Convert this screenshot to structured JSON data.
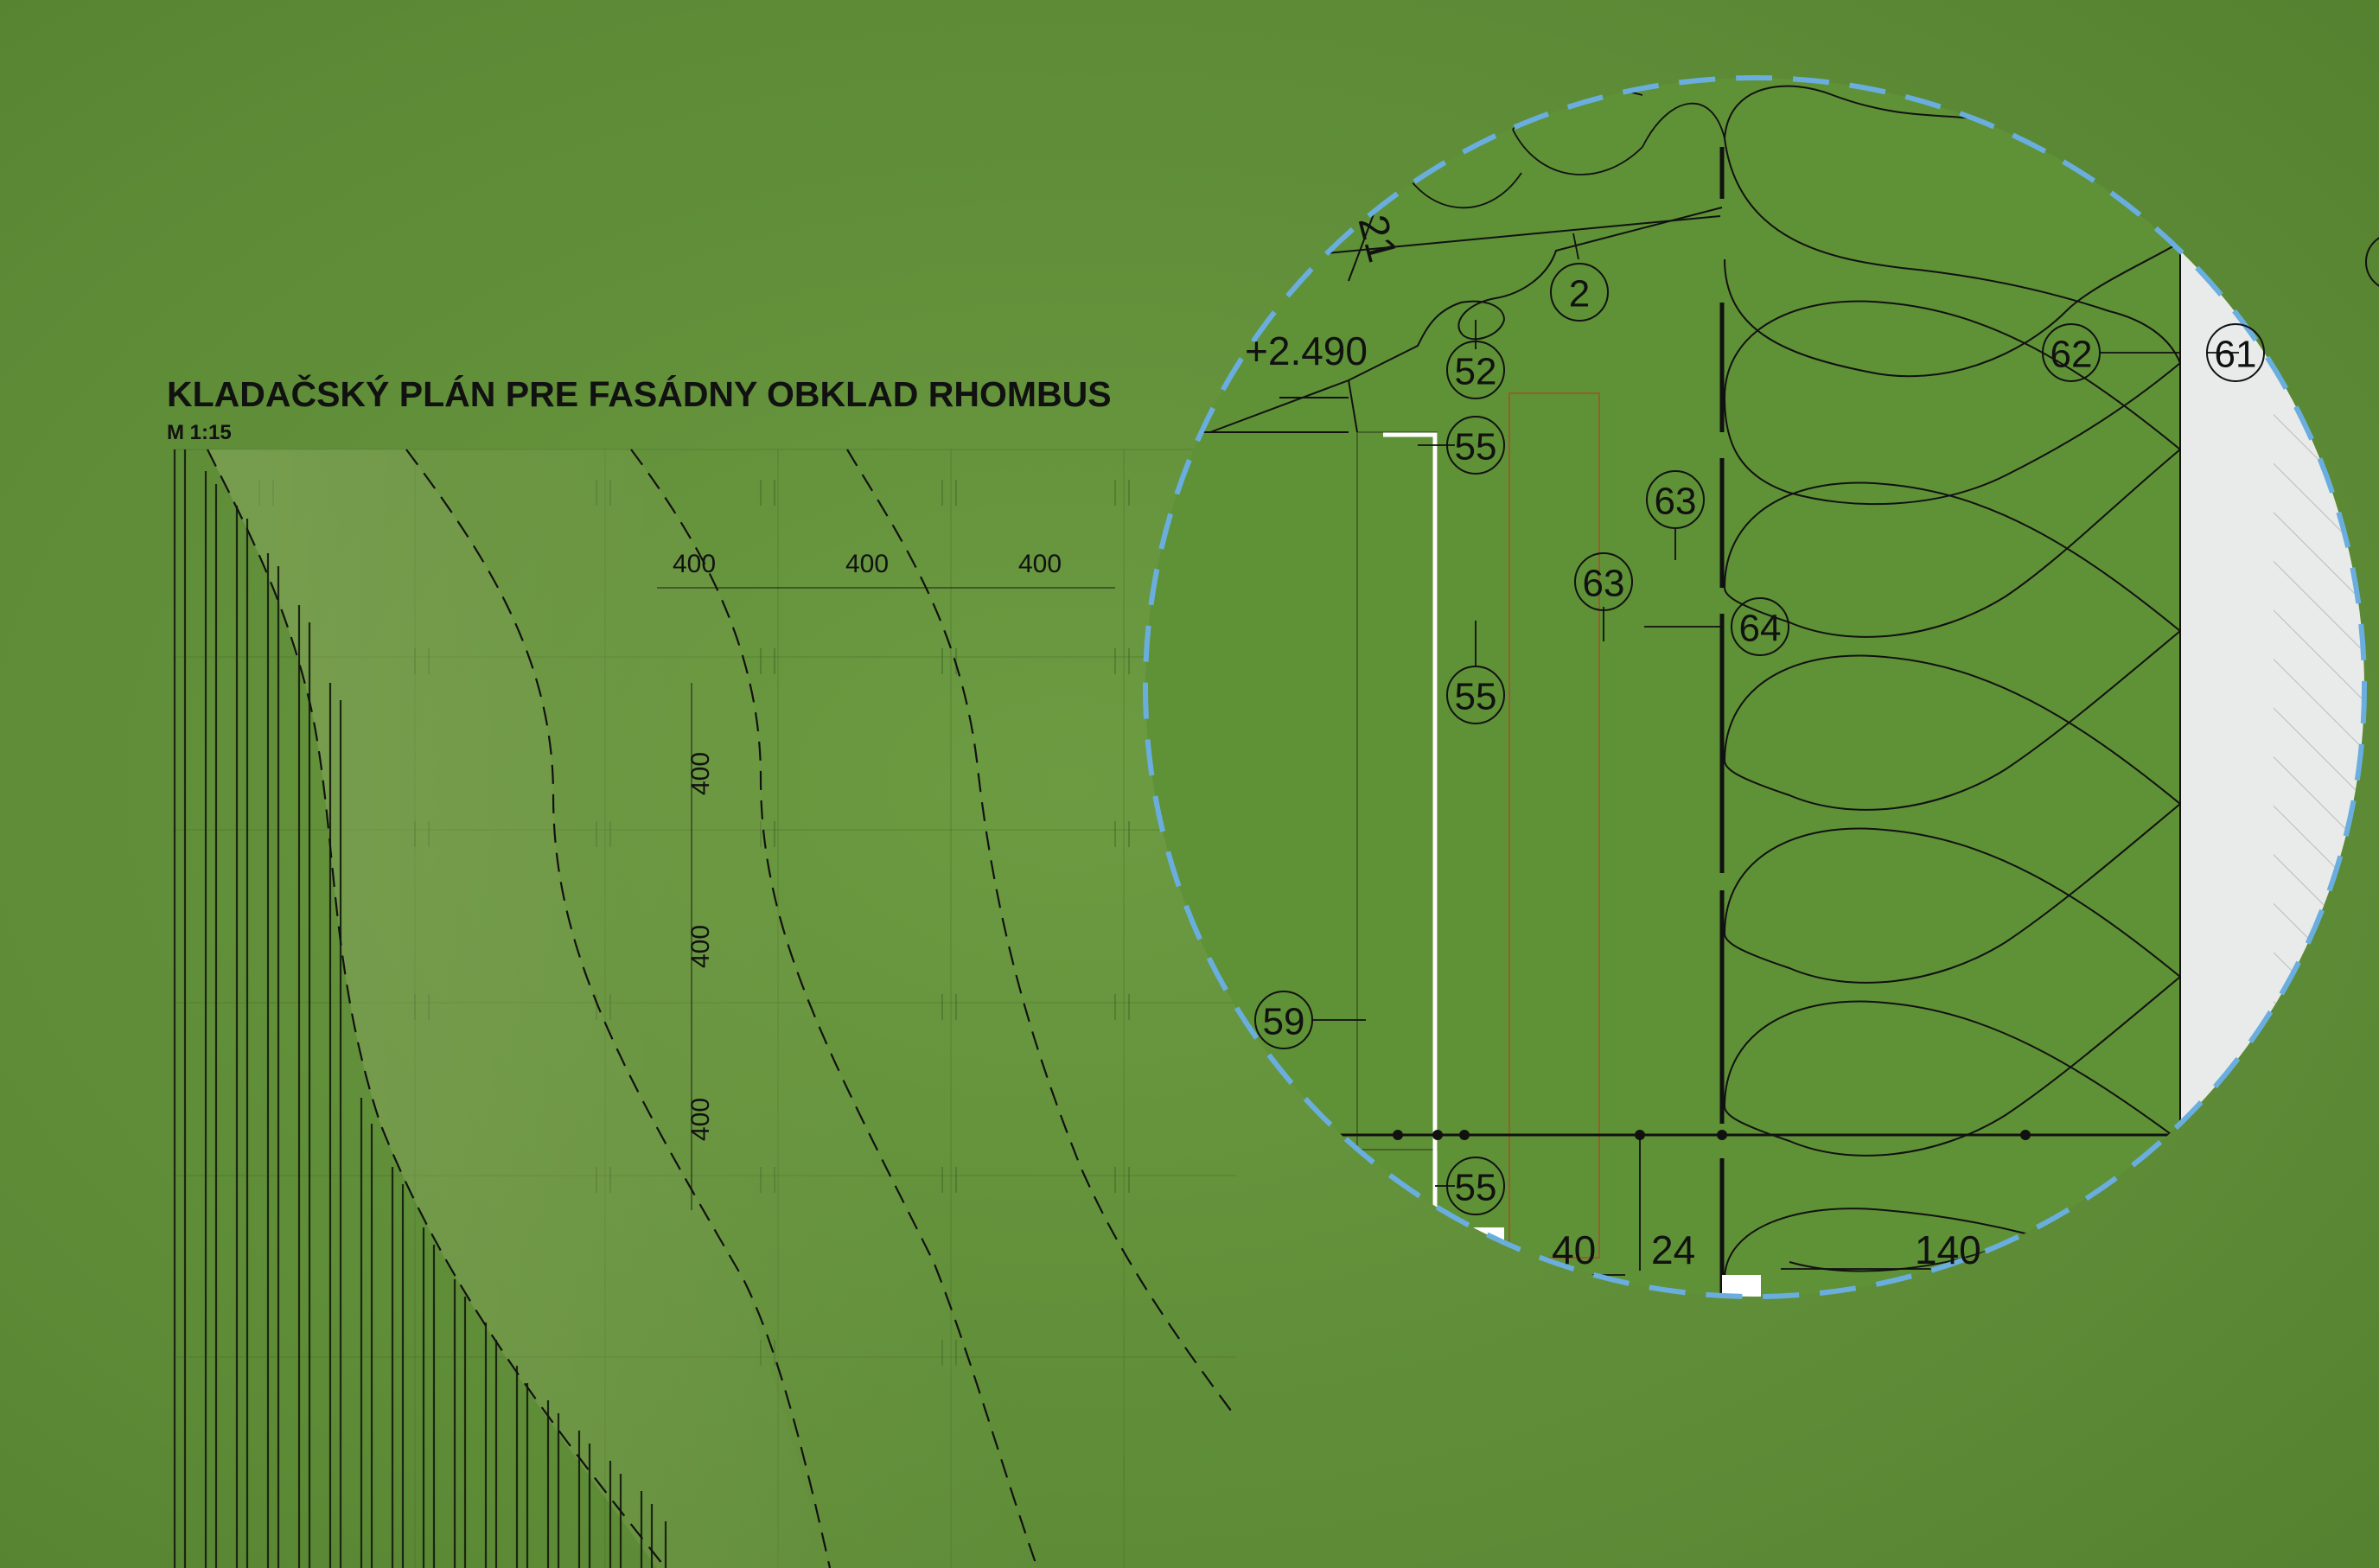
{
  "plan": {
    "title": "KLADAČSKÝ PLÁN PRE FASÁDNY OBKLAD RHOMBUS",
    "scale": "M 1:15",
    "dims_horizontal": [
      "400",
      "400",
      "400"
    ],
    "dims_vertical": [
      "400",
      "400",
      "400"
    ]
  },
  "detail": {
    "elevation": "+2.490",
    "dim_21": "21",
    "callouts": {
      "c2": "2",
      "c52": "52",
      "c55a": "55",
      "c55b": "55",
      "c55c": "55",
      "c63a": "63",
      "c63b": "63",
      "c64": "64",
      "c62": "62",
      "c61": "61",
      "c59": "59"
    },
    "dims_bottom": [
      "40",
      "24",
      "140"
    ]
  },
  "colors": {
    "background": "#5e8c38",
    "lines": "#111111",
    "magnifier_border": "#6aaee0",
    "wall_fill": "#e9ebea"
  }
}
